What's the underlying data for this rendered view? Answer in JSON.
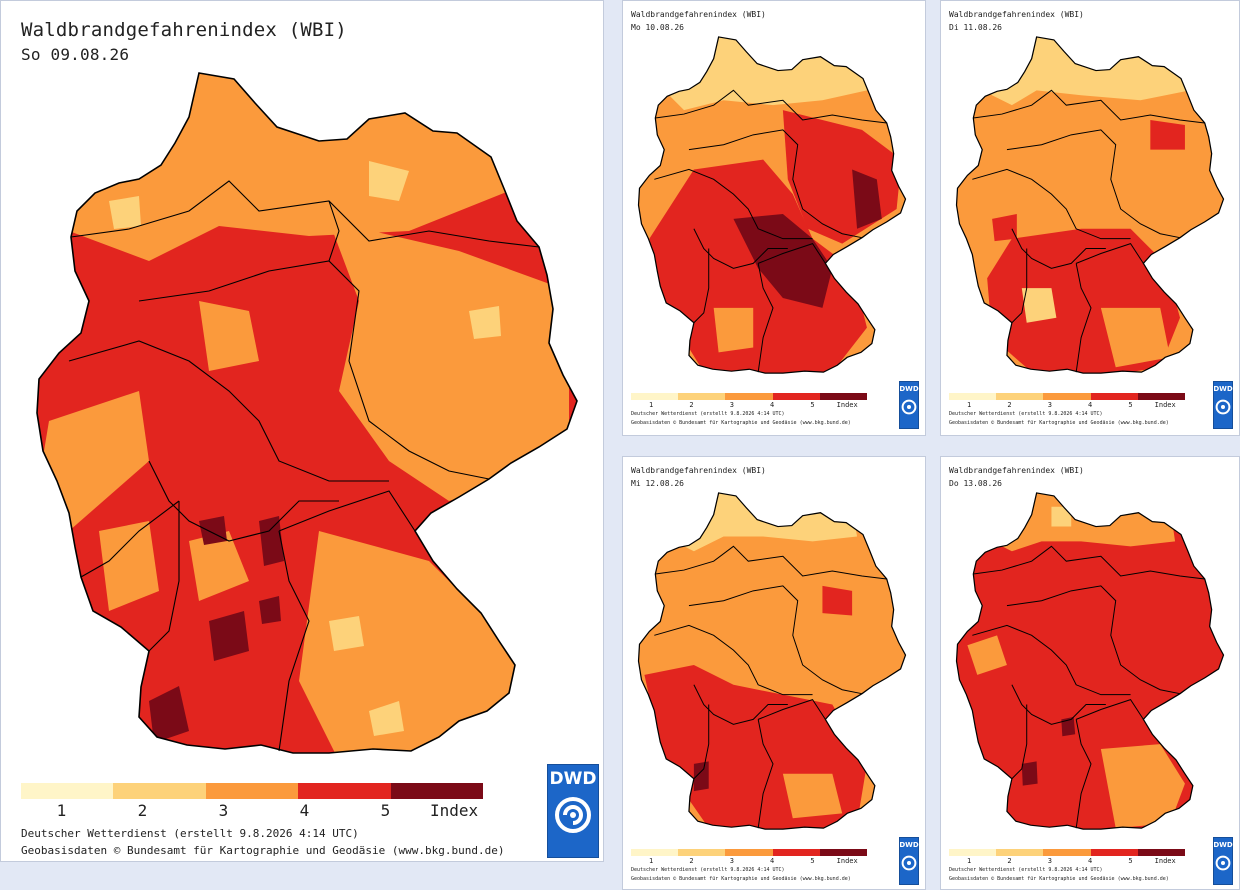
{
  "colors": {
    "background": "#e2e8f5",
    "index_1": "#fff5c8",
    "index_2": "#fdd27a",
    "index_3": "#fb9a3c",
    "index_4": "#e2251f",
    "index_5": "#7b0a17",
    "border": "#000000",
    "dwd_blue": "#1c66c8"
  },
  "icons": {
    "logo": "dwd-logo",
    "spiral": "dwd-spiral-icon"
  },
  "legend": {
    "labels": [
      "1",
      "2",
      "3",
      "4",
      "5"
    ],
    "unit": "Index",
    "colors": [
      "#fff5c8",
      "#fdd27a",
      "#fb9a3c",
      "#e2251f",
      "#7b0a17"
    ]
  },
  "logo": {
    "text": "DWD"
  },
  "main": {
    "title": "Waldbrandgefahrenindex (WBI)",
    "date": "So 09.08.26",
    "credit1": "Deutscher Wetterdienst (erstellt 9.8.2026 4:14 UTC)",
    "credit2": "Geobasisdaten © Bundesamt für Kartographie und Geodäsie (www.bkg.bund.de)"
  },
  "forecasts": [
    {
      "title": "Waldbrandgefahrenindex (WBI)",
      "date": "Mo 10.08.26",
      "credit1": "Deutscher Wetterdienst (erstellt 9.8.2026 4:14 UTC)",
      "credit2": "Geobasisdaten © Bundesamt für Kartographie und Geodäsie (www.bkg.bund.de)"
    },
    {
      "title": "Waldbrandgefahrenindex (WBI)",
      "date": "Di 11.08.26",
      "credit1": "Deutscher Wetterdienst (erstellt 9.8.2026 4:14 UTC)",
      "credit2": "Geobasisdaten © Bundesamt für Kartographie und Geodäsie (www.bkg.bund.de)"
    },
    {
      "title": "Waldbrandgefahrenindex (WBI)",
      "date": "Mi 12.08.26",
      "credit1": "Deutscher Wetterdienst (erstellt 9.8.2026 4:14 UTC)",
      "credit2": "Geobasisdaten © Bundesamt für Kartographie und Geodäsie (www.bkg.bund.de)"
    },
    {
      "title": "Waldbrandgefahrenindex (WBI)",
      "date": "Do 13.08.26",
      "credit1": "Deutscher Wetterdienst (erstellt 9.8.2026 4:14 UTC)",
      "credit2": "Geobasisdaten © Bundesamt für Kartographie und Geodäsie (www.bkg.bund.de)"
    }
  ],
  "dominant_index": {
    "main": 4,
    "forecasts": [
      4,
      3,
      3,
      4
    ]
  }
}
